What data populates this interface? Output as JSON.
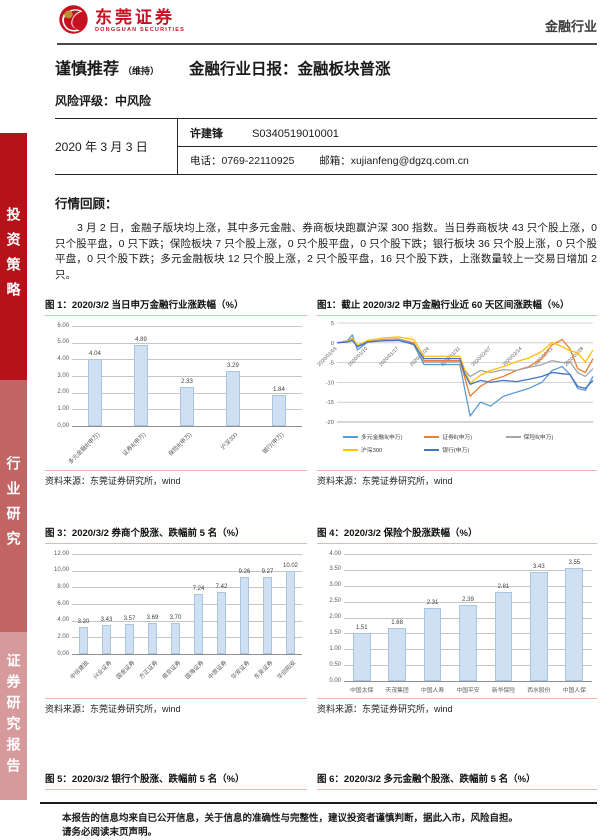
{
  "brand": {
    "logo_text": "东莞证券",
    "logo_subtext": "DONGGUAN SECURITIES",
    "industry_tag": "金融行业"
  },
  "sidebar": {
    "items": [
      {
        "label": "投资策略"
      },
      {
        "label": "行业研究"
      },
      {
        "label": "证券研究报告"
      }
    ]
  },
  "report": {
    "rating": "谨慎推荐",
    "rating_note": "（维持）",
    "title": "金融行业日报：金融板块普涨",
    "risk_rating": "风险评级：中风险",
    "date": "2020 年 3 月 3 日",
    "analyst_name": "许建锋",
    "analyst_license": "S0340519010001",
    "phone_label": "电话：",
    "phone": "0769-22110925",
    "email_label": "邮箱：",
    "email": "xujianfeng@dgzq.com.cn"
  },
  "section": {
    "heading": "行情回顾：",
    "paragraph": "3 月 2 日，金融子版块均上涨，其中多元金融、券商板块跑赢沪深 300 指数。当日券商板块 43 只个股上涨，0 只个股平盘，0 只下跌；保险板块 7 只个股上涨，0 只个股平盘，0 只个股下跌；银行板块 36 只个股上涨，0 只个股平盘，0 只个股下跌；多元金融板块 12 只个股上涨，2 只个股平盘，16 只个股下跌，上涨数量较上一交易日增加 2 只。"
  },
  "figures": {
    "fig1_title": "图 1：2020/3/2 当日申万金融行业涨跌幅（%）",
    "fig2_title": "图1：截止 2020/3/2 申万金融行业近 60 天区间涨跌幅（%）",
    "fig3_title": "图 3：2020/3/2 券商个股涨、跌幅前 5 名（%）",
    "fig4_title": "图 4：2020/3/2 保险个股涨跌幅（%）",
    "fig5_title": "图 5：2020/3/2 银行个股涨、跌幅前 5 名（%）",
    "fig6_title": "图 6：2020/3/2 多元金融个股涨、跌幅前 5 名（%）",
    "source_note": "资料来源：东莞证券研究所，wind"
  },
  "footer": {
    "line1": "本报告的信息均来自已公开信息，关于信息的准确性与完整性，建议投资者谨慎判断，据此入市，风险自担。",
    "line2": "请务必阅读末页声明。"
  },
  "chart_data": [
    {
      "id": "fig1",
      "type": "bar",
      "title": "2020/3/2 当日申万金融行业涨跌幅（%）",
      "categories": [
        "多元金融Ⅱ(申万)",
        "证券Ⅱ(申万)",
        "保险Ⅱ(申万)",
        "沪深300",
        "银行(申万)"
      ],
      "values": [
        4.04,
        4.89,
        2.33,
        3.29,
        1.84
      ],
      "ylim": [
        0,
        6
      ],
      "yticks": [
        0,
        1,
        2,
        3,
        4,
        5,
        6
      ],
      "ytick_decimals": 2,
      "rotate_labels": true,
      "bar_ratio": 0.32,
      "bar_color": "#cfe0f2",
      "grid": true
    },
    {
      "id": "fig2",
      "type": "line",
      "title": "截止 2020/3/2 申万金融行业近 60 天区间涨跌幅（%）",
      "ylim": [
        -20,
        5
      ],
      "yticks": [
        5,
        0,
        -5,
        -10,
        -15,
        -20
      ],
      "x_tick_labels": [
        "2020/01/03",
        "2020/01/10",
        "2020/01/17",
        "2020/01/24",
        "2020/01/31",
        "2020/02/07",
        "2020/02/14",
        "2020/02/21",
        "2020/02/28"
      ],
      "x_tick_pos": [
        0,
        0.12,
        0.241,
        0.361,
        0.482,
        0.602,
        0.723,
        0.843,
        0.964
      ],
      "x": [
        0,
        0.04,
        0.06,
        0.08,
        0.12,
        0.18,
        0.24,
        0.3,
        0.34,
        0.48,
        0.5,
        0.52,
        0.56,
        0.6,
        0.65,
        0.7,
        0.75,
        0.8,
        0.84,
        0.88,
        0.91,
        0.94,
        0.97,
        1.0
      ],
      "series": [
        {
          "name": "多元金融Ⅱ(申万)",
          "color": "#5b9bd5",
          "values": [
            0,
            0.5,
            2.0,
            -1.8,
            0.2,
            0.6,
            0.8,
            -0.5,
            -5.5,
            -5.5,
            -12.0,
            -18.5,
            -15.0,
            -16.0,
            -13.5,
            -12.5,
            -11.5,
            -10.0,
            -7.0,
            -6.0,
            -8.0,
            -11.5,
            -12.0,
            -8.5
          ]
        },
        {
          "name": "证券Ⅱ(申万)",
          "color": "#ed7d31",
          "values": [
            0,
            0.3,
            1.0,
            -1.0,
            0.3,
            0.8,
            1.0,
            0.0,
            -4.5,
            -4.5,
            -9.0,
            -13.5,
            -11.0,
            -9.5,
            -8.5,
            -7.0,
            -6.0,
            -4.0,
            -0.5,
            0.8,
            -1.5,
            -6.5,
            -7.5,
            -4.0
          ]
        },
        {
          "name": "保险Ⅱ(申万)",
          "color": "#a5a5a5",
          "values": [
            0,
            0.2,
            0.8,
            -0.8,
            0.3,
            0.7,
            0.9,
            -0.2,
            -4.8,
            -4.8,
            -7.0,
            -8.5,
            -7.0,
            -7.5,
            -6.8,
            -7.0,
            -6.2,
            -5.5,
            -4.5,
            -5.0,
            -4.8,
            -7.5,
            -8.5,
            -6.5
          ]
        },
        {
          "name": "沪深300",
          "color": "#ffc000",
          "values": [
            0,
            0.4,
            1.2,
            -0.6,
            0.6,
            1.2,
            1.5,
            0.8,
            -3.4,
            -3.4,
            -7.0,
            -10.2,
            -8.2,
            -7.0,
            -6.0,
            -4.8,
            -3.8,
            -2.2,
            0.1,
            -1.0,
            -2.0,
            -2.5,
            -4.9,
            -1.8
          ]
        },
        {
          "name": "银行(申万)",
          "color": "#4472c4",
          "values": [
            0,
            0.2,
            0.6,
            -1.0,
            0.2,
            0.5,
            0.6,
            -0.4,
            -4.0,
            -4.0,
            -8.0,
            -10.5,
            -9.5,
            -10.0,
            -9.5,
            -9.8,
            -9.2,
            -8.5,
            -7.5,
            -7.8,
            -8.0,
            -11.0,
            -11.5,
            -9.5
          ]
        }
      ],
      "legend_position": "bottom",
      "grid": true
    },
    {
      "id": "fig3",
      "type": "bar",
      "title": "2020/3/2 券商个股涨、跌幅前 5 名（%）",
      "categories": [
        "中信建投",
        "兴业证券",
        "国金证券",
        "方正证券",
        "南京证券",
        "国海证券",
        "中原证券",
        "华安证券",
        "东吴证券",
        "华创阳安"
      ],
      "values": [
        3.2,
        3.43,
        3.57,
        3.69,
        3.7,
        7.24,
        7.42,
        9.26,
        9.27,
        10.02
      ],
      "ylim": [
        0,
        12
      ],
      "yticks": [
        0,
        2,
        4,
        6,
        8,
        10,
        12
      ],
      "ytick_decimals": 2,
      "rotate_labels": true,
      "bar_ratio": 0.4,
      "bar_color": "#cfe0f2",
      "grid": true
    },
    {
      "id": "fig4",
      "type": "bar",
      "title": "2020/3/2 保险个股涨跌幅（%）",
      "categories": [
        "中国太保",
        "天茂集团",
        "中国人寿",
        "中国平安",
        "新华保险",
        "西水股份",
        "中国人保"
      ],
      "values": [
        1.51,
        1.68,
        2.31,
        2.39,
        2.81,
        3.43,
        3.55
      ],
      "ylim": [
        0,
        4
      ],
      "yticks": [
        0,
        0.5,
        1,
        1.5,
        2,
        2.5,
        3,
        3.5,
        4
      ],
      "ytick_decimals": 2,
      "rotate_labels": false,
      "bar_ratio": 0.5,
      "bar_color": "#cfe0f2",
      "grid": true
    }
  ]
}
